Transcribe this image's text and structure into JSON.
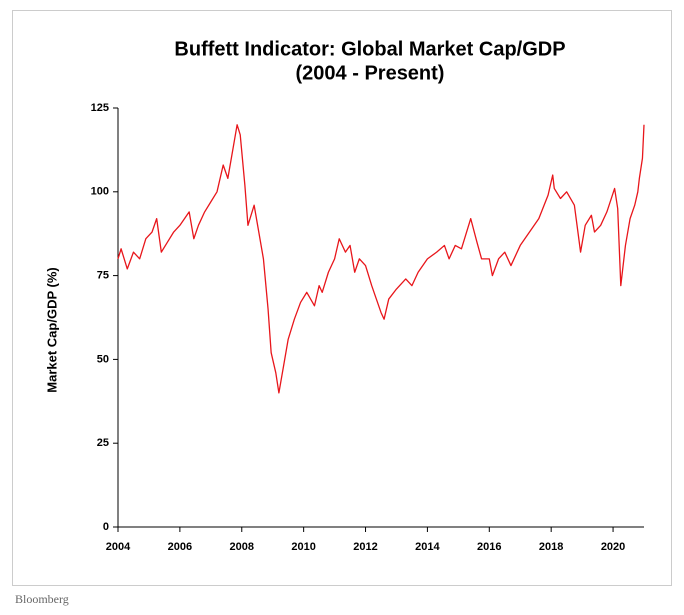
{
  "chart_data": {
    "type": "line",
    "title": "Buffett Indicator: Global Market Cap/GDP",
    "subtitle": "(2004 - Present)",
    "y_label": "Market Cap/GDP (%)",
    "source": "Bloomberg",
    "color": "#e8161b",
    "xlim": [
      2004,
      2021
    ],
    "xticks": [
      2004,
      2006,
      2008,
      2010,
      2012,
      2014,
      2016,
      2018,
      2020
    ],
    "ylim": [
      0,
      125
    ],
    "yticks": [
      0,
      25,
      50,
      75,
      100,
      125
    ],
    "x": [
      2004.0,
      2004.1,
      2004.3,
      2004.5,
      2004.7,
      2004.9,
      2005.1,
      2005.25,
      2005.4,
      2005.6,
      2005.8,
      2006.0,
      2006.3,
      2006.45,
      2006.6,
      2006.8,
      2007.0,
      2007.2,
      2007.4,
      2007.55,
      2007.7,
      2007.85,
      2007.95,
      2008.1,
      2008.2,
      2008.4,
      2008.55,
      2008.7,
      2008.85,
      2008.95,
      2009.1,
      2009.2,
      2009.35,
      2009.5,
      2009.7,
      2009.9,
      2010.1,
      2010.35,
      2010.5,
      2010.6,
      2010.8,
      2011.0,
      2011.15,
      2011.35,
      2011.5,
      2011.65,
      2011.8,
      2012.0,
      2012.2,
      2012.35,
      2012.5,
      2012.6,
      2012.75,
      2013.0,
      2013.3,
      2013.5,
      2013.7,
      2014.0,
      2014.3,
      2014.55,
      2014.7,
      2014.9,
      2015.1,
      2015.4,
      2015.6,
      2015.75,
      2016.0,
      2016.1,
      2016.3,
      2016.5,
      2016.7,
      2017.0,
      2017.3,
      2017.6,
      2017.9,
      2018.05,
      2018.1,
      2018.3,
      2018.5,
      2018.75,
      2018.95,
      2019.1,
      2019.3,
      2019.4,
      2019.6,
      2019.8,
      2020.05,
      2020.15,
      2020.25,
      2020.4,
      2020.55,
      2020.7,
      2020.8,
      2020.85,
      2020.95,
      2021.0
    ],
    "values": [
      80,
      83,
      77,
      82,
      80,
      86,
      88,
      92,
      82,
      85,
      88,
      90,
      94,
      86,
      90,
      94,
      97,
      100,
      108,
      104,
      112,
      120,
      117,
      102,
      90,
      96,
      88,
      80,
      65,
      52,
      46,
      40,
      48,
      56,
      62,
      67,
      70,
      66,
      72,
      70,
      76,
      80,
      86,
      82,
      84,
      76,
      80,
      78,
      72,
      68,
      64,
      62,
      68,
      71,
      74,
      72,
      76,
      80,
      82,
      84,
      80,
      84,
      83,
      92,
      85,
      80,
      80,
      75,
      80,
      82,
      78,
      84,
      88,
      92,
      99,
      105,
      101,
      98,
      100,
      96,
      82,
      90,
      93,
      88,
      90,
      94,
      101,
      95,
      72,
      84,
      92,
      96,
      100,
      104,
      110,
      120
    ]
  }
}
